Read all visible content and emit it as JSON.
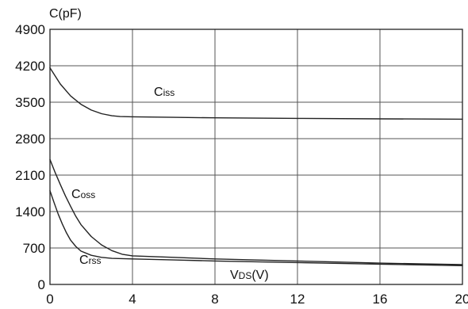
{
  "chart_data": {
    "type": "line",
    "ylabel": "C(pF)",
    "xlabel": {
      "main": "V",
      "sub": "DS",
      "suffix": "(V)"
    },
    "xlim": [
      0,
      20
    ],
    "ylim": [
      0,
      4900
    ],
    "xticks": [
      0,
      4,
      8,
      12,
      16,
      20
    ],
    "yticks": [
      0,
      700,
      1400,
      2100,
      2800,
      3500,
      4200,
      4900
    ],
    "grid": true,
    "series": [
      {
        "name": "Ciss",
        "label_main": "C",
        "label_sub": "iss",
        "x": [
          0,
          0.5,
          1,
          1.5,
          2,
          2.5,
          3,
          3.4,
          4,
          6,
          8,
          12,
          16,
          20
        ],
        "y": [
          4160,
          3850,
          3620,
          3460,
          3350,
          3280,
          3240,
          3225,
          3220,
          3210,
          3200,
          3190,
          3180,
          3175
        ]
      },
      {
        "name": "Coss",
        "label_main": "C",
        "label_sub": "oss",
        "x": [
          0,
          0.25,
          0.5,
          0.75,
          1,
          1.25,
          1.5,
          2,
          2.5,
          3,
          3.5,
          4,
          6,
          8,
          12,
          16,
          20
        ],
        "y": [
          2400,
          2150,
          1920,
          1700,
          1500,
          1310,
          1150,
          920,
          760,
          650,
          580,
          550,
          520,
          490,
          450,
          410,
          380
        ]
      },
      {
        "name": "Crss",
        "label_main": "C",
        "label_sub": "rss",
        "x": [
          0,
          0.2,
          0.4,
          0.6,
          0.8,
          1,
          1.25,
          1.5,
          2,
          2.5,
          3,
          4,
          6,
          8,
          12,
          16,
          20
        ],
        "y": [
          1800,
          1570,
          1350,
          1160,
          990,
          850,
          730,
          640,
          560,
          520,
          500,
          490,
          470,
          450,
          420,
          390,
          360
        ]
      }
    ]
  }
}
